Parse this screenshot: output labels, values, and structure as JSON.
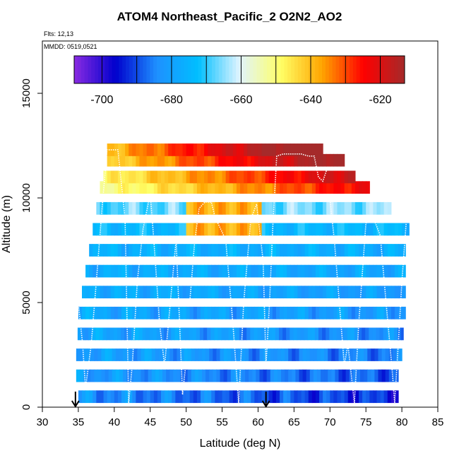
{
  "chart_data": {
    "type": "heatmap",
    "title": "ATOM4 Northeast_Pacific_2 O2N2_AO2",
    "flights_label": "Flts: 12,13",
    "dates_label": "MMDD: 0519,0521",
    "xlabel": "Latitude (deg N)",
    "ylabel": "Altitude (m)",
    "xlim": [
      30,
      85
    ],
    "ylim": [
      0,
      17500
    ],
    "x_ticks": [
      "30",
      "35",
      "40",
      "45",
      "50",
      "55",
      "60",
      "65",
      "70",
      "75",
      "80",
      "85"
    ],
    "x_tick_values": [
      30,
      35,
      40,
      45,
      50,
      55,
      60,
      65,
      70,
      75,
      80,
      85
    ],
    "y_ticks": [
      "0",
      "5000",
      "10000",
      "15000"
    ],
    "y_tick_values": [
      0,
      5000,
      10000,
      15000
    ],
    "colorbar": {
      "range": [
        -708,
        -613
      ],
      "tick_labels": [
        "-700",
        "-680",
        "-660",
        "-640",
        "-620"
      ],
      "tick_values": [
        -700,
        -680,
        -660,
        -640,
        -620
      ],
      "separator_values": [
        -700,
        -690,
        -680,
        -670,
        -660,
        -650,
        -640,
        -630,
        -620
      ]
    },
    "arrows_latitude": [
      34.6,
      61.1
    ],
    "colors": {
      "c0": "#8a2be2",
      "c1": "#0000cd",
      "c2": "#1e90ff",
      "c3": "#00bfff",
      "c4": "#e0f4ff",
      "c5": "#ffff66",
      "c6": "#ffa500",
      "c7": "#ff0000",
      "c8": "#a52a2a"
    },
    "altitude_bands": [
      {
        "alt": 500,
        "x0": 35.0,
        "x1": 79.5,
        "base": -683,
        "amp": 7,
        "trend": -10
      },
      {
        "alt": 1500,
        "x0": 34.7,
        "x1": 79.5,
        "base": -681,
        "amp": 6,
        "trend": -8
      },
      {
        "alt": 2500,
        "x0": 34.7,
        "x1": 80.0,
        "base": -680,
        "amp": 6,
        "trend": -6
      },
      {
        "alt": 3500,
        "x0": 34.9,
        "x1": 80.2,
        "base": -679,
        "amp": 6,
        "trend": -5
      },
      {
        "alt": 4500,
        "x0": 35.0,
        "x1": 80.5,
        "base": -678,
        "amp": 6,
        "trend": -4
      },
      {
        "alt": 5500,
        "x0": 35.5,
        "x1": 80.5,
        "base": -677,
        "amp": 5,
        "trend": -4
      },
      {
        "alt": 6500,
        "x0": 36.0,
        "x1": 80.5,
        "base": -677,
        "amp": 5,
        "trend": -2
      },
      {
        "alt": 7500,
        "x0": 36.5,
        "x1": 80.5,
        "base": -676,
        "amp": 5,
        "trend": -1
      },
      {
        "alt": 8500,
        "x0": 37.0,
        "x1": 81.0,
        "base": -674,
        "amp": 5,
        "trend": 0
      },
      {
        "alt": 9500,
        "x0": 37.5,
        "x1": 78.5,
        "base": -668,
        "amp": 6,
        "trend": 3
      },
      {
        "alt": 10500,
        "x0": 38.0,
        "x1": 75.5,
        "base": -652,
        "amp": 4,
        "trend": 30
      },
      {
        "alt": 11000,
        "x0": 38.5,
        "x1": 73.5,
        "base": -648,
        "amp": 4,
        "trend": 32
      },
      {
        "alt": 11800,
        "x0": 39.0,
        "x1": 72.0,
        "base": -643,
        "amp": 4,
        "trend": 34
      },
      {
        "alt": 12300,
        "x0": 39.0,
        "x1": 69.0,
        "base": -640,
        "amp": 4,
        "trend": 36
      }
    ],
    "hotspot": {
      "lat_range": [
        50,
        60
      ],
      "alt_range": [
        8500,
        10000
      ],
      "value": -638
    },
    "flight_tracks": [
      [
        [
          34.5,
          2000
        ],
        [
          35.0,
          5000
        ],
        [
          35.6,
          3000
        ],
        [
          36.0,
          900
        ],
        [
          36.8,
          3000
        ],
        [
          37.5,
          6000
        ],
        [
          38.3,
          9500
        ],
        [
          39.0,
          12300
        ],
        [
          40.5,
          12300
        ],
        [
          41.5,
          9000
        ],
        [
          42.0,
          200
        ],
        [
          42.5,
          2000
        ],
        [
          43.2,
          6000
        ],
        [
          44.0,
          8500
        ],
        [
          45.0,
          10200
        ],
        [
          45.5,
          8000
        ],
        [
          46.3,
          4000
        ],
        [
          47.0,
          2000
        ],
        [
          47.8,
          5000
        ],
        [
          48.6,
          8000
        ],
        [
          49.5,
          600
        ],
        [
          50.0,
          2200
        ]
      ],
      [
        [
          50.5,
          5000
        ],
        [
          51.2,
          8000
        ],
        [
          51.8,
          9500
        ],
        [
          52.6,
          9800
        ],
        [
          53.5,
          9800
        ],
        [
          54.0,
          9100
        ],
        [
          55.5,
          8000
        ],
        [
          56.5,
          4000
        ],
        [
          57.3,
          200
        ],
        [
          58.0,
          5000
        ],
        [
          59.0,
          9000
        ],
        [
          59.8,
          9700
        ],
        [
          60.7,
          7000
        ],
        [
          61.1,
          2000
        ],
        [
          61.6,
          5000
        ],
        [
          62.1,
          9000
        ],
        [
          62.6,
          12000
        ],
        [
          63.5,
          12100
        ],
        [
          64.5,
          12100
        ],
        [
          66.0,
          12100
        ],
        [
          67.0,
          12000
        ],
        [
          67.8,
          12000
        ],
        [
          68.4,
          11000
        ],
        [
          69.0,
          10800
        ],
        [
          69.5,
          11300
        ]
      ],
      [
        [
          70.0,
          9900
        ],
        [
          70.6,
          8000
        ],
        [
          71.3,
          5000
        ],
        [
          72.0,
          2000
        ],
        [
          72.5,
          3000
        ],
        [
          73.4,
          200
        ],
        [
          74.0,
          4000
        ],
        [
          75.0,
          8800
        ],
        [
          76.2,
          8900
        ],
        [
          77.0,
          8200
        ],
        [
          77.8,
          5000
        ],
        [
          78.6,
          2000
        ],
        [
          79.0,
          200
        ],
        [
          79.5,
          3000
        ],
        [
          80.0,
          6000
        ],
        [
          80.6,
          8800
        ]
      ]
    ]
  }
}
